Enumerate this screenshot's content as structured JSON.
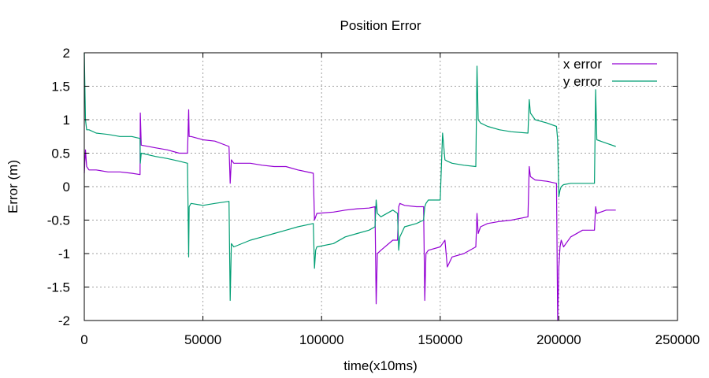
{
  "chart_data": {
    "type": "line",
    "title": "Position Error",
    "xlabel": "time(x10ms)",
    "ylabel": "Error (m)",
    "xlim": [
      0,
      250000
    ],
    "ylim": [
      -2,
      2
    ],
    "xticks": [
      0,
      50000,
      100000,
      150000,
      200000,
      250000
    ],
    "yticks": [
      -2,
      -1.5,
      -1,
      -0.5,
      0,
      0.5,
      1,
      1.5,
      2
    ],
    "grid": true,
    "legend_position": "top-right",
    "series": [
      {
        "name": "x error",
        "color": "#9400d3",
        "x": [
          0,
          500,
          1000,
          2000,
          5000,
          10000,
          15000,
          20000,
          23500,
          23600,
          24000,
          30000,
          35000,
          40000,
          43500,
          44000,
          44200,
          45000,
          50000,
          55000,
          61000,
          61500,
          62000,
          63000,
          70000,
          75000,
          80000,
          85000,
          90000,
          96500,
          97000,
          97500,
          98000,
          105000,
          110000,
          115000,
          120000,
          122500,
          123000,
          123500,
          125000,
          130000,
          132000,
          132500,
          133000,
          135000,
          140000,
          143000,
          143500,
          144000,
          145000,
          150000,
          151000,
          152000,
          153000,
          155000,
          160000,
          165000,
          165500,
          166000,
          167000,
          170000,
          175000,
          180000,
          187000,
          187500,
          188000,
          190000,
          195000,
          199000,
          199500,
          200000,
          200500,
          201000,
          202000,
          205000,
          210000,
          215000,
          215500,
          216000,
          220000,
          224000
        ],
        "y": [
          0.2,
          0.55,
          0.3,
          0.25,
          0.25,
          0.22,
          0.22,
          0.2,
          0.18,
          1.1,
          0.62,
          0.58,
          0.55,
          0.5,
          0.5,
          1.15,
          0.75,
          0.75,
          0.7,
          0.68,
          0.6,
          0.05,
          0.4,
          0.35,
          0.35,
          0.32,
          0.3,
          0.3,
          0.25,
          0.2,
          -0.5,
          -0.45,
          -0.4,
          -0.38,
          -0.35,
          -0.33,
          -0.32,
          -0.3,
          -1.75,
          -1.0,
          -0.95,
          -0.8,
          -0.8,
          -0.3,
          -0.25,
          -0.28,
          -0.3,
          -0.3,
          -1.7,
          -1.0,
          -0.95,
          -0.9,
          -0.85,
          -0.8,
          -1.2,
          -1.05,
          -1.0,
          -0.9,
          -0.4,
          -0.7,
          -0.6,
          -0.55,
          -0.52,
          -0.5,
          -0.45,
          0.3,
          0.15,
          0.1,
          0.08,
          0.05,
          -2.0,
          -1.2,
          -0.9,
          -0.8,
          -0.9,
          -0.75,
          -0.65,
          -0.65,
          -0.3,
          -0.4,
          -0.35,
          -0.35
        ]
      },
      {
        "name": "y error",
        "color": "#009e73",
        "x": [
          0,
          500,
          1000,
          2000,
          5000,
          10000,
          15000,
          20000,
          23500,
          23600,
          24000,
          30000,
          35000,
          40000,
          43500,
          44000,
          44200,
          45000,
          50000,
          55000,
          61000,
          61500,
          62000,
          63000,
          70000,
          75000,
          80000,
          85000,
          90000,
          96500,
          97000,
          97500,
          98000,
          105000,
          110000,
          115000,
          120000,
          122500,
          123000,
          123500,
          125000,
          130000,
          132000,
          132500,
          133000,
          135000,
          140000,
          143000,
          143500,
          144000,
          145000,
          150000,
          151000,
          152000,
          153000,
          155000,
          160000,
          165000,
          165500,
          166000,
          167000,
          170000,
          175000,
          180000,
          187000,
          187500,
          188000,
          190000,
          195000,
          199000,
          199500,
          200000,
          200500,
          201000,
          202000,
          205000,
          210000,
          215000,
          215500,
          216000,
          220000,
          224000
        ],
        "y": [
          2.0,
          1.0,
          0.85,
          0.85,
          0.8,
          0.78,
          0.75,
          0.75,
          0.72,
          0.35,
          0.5,
          0.45,
          0.42,
          0.38,
          0.35,
          -1.05,
          -0.3,
          -0.25,
          -0.28,
          -0.25,
          -0.22,
          -1.7,
          -0.85,
          -0.9,
          -0.8,
          -0.75,
          -0.7,
          -0.65,
          -0.6,
          -0.55,
          -1.22,
          -0.95,
          -0.9,
          -0.85,
          -0.75,
          -0.7,
          -0.65,
          -0.6,
          -0.2,
          -0.4,
          -0.45,
          -0.35,
          -0.4,
          -0.95,
          -0.75,
          -0.6,
          -0.55,
          -0.5,
          -0.3,
          -0.25,
          -0.2,
          -0.2,
          0.8,
          0.4,
          0.38,
          0.35,
          0.32,
          0.3,
          1.8,
          1.0,
          0.95,
          0.9,
          0.85,
          0.82,
          0.8,
          1.3,
          1.1,
          1.0,
          0.95,
          0.9,
          0.7,
          -0.15,
          -0.05,
          0.0,
          0.03,
          0.05,
          0.05,
          0.05,
          1.45,
          0.7,
          0.65,
          0.6
        ]
      }
    ]
  }
}
